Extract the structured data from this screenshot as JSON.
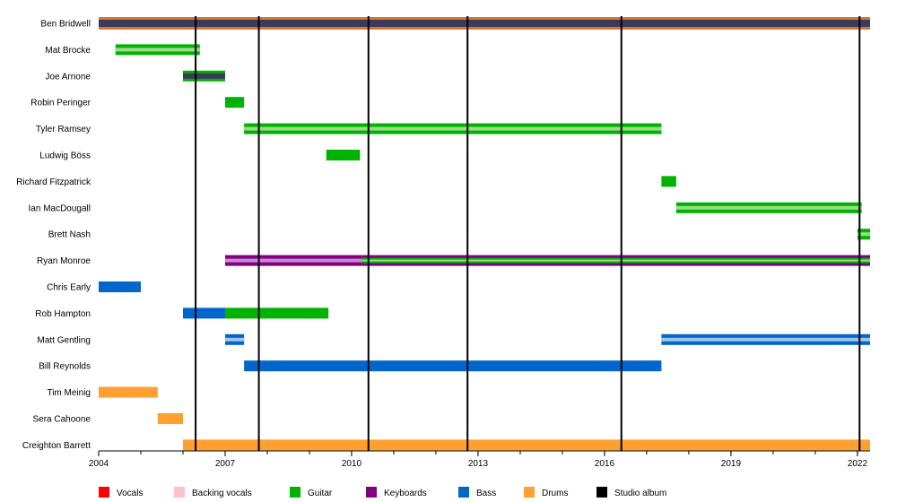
{
  "chart_data": {
    "type": "timeline",
    "title": "",
    "xlabel": "",
    "ylabel": "",
    "xlim": [
      2004.0,
      2022.3
    ],
    "x_ticks": [
      "2004",
      "2007",
      "2010",
      "2013",
      "2016",
      "2019",
      "2022"
    ],
    "grid": false,
    "legend_position": "bottom",
    "colors": {
      "vocals": "#ff0000",
      "backing": "#ffc0cb",
      "guitar": "#00b300",
      "keyboards": "#800080",
      "bass": "#0066cc",
      "drums": "#ffa030",
      "album": "#000000",
      "ben_vocals": "#3a3a5a",
      "ben_outer": "#d9782a",
      "acoustic": "#99dd88"
    },
    "legend": [
      {
        "label": "Vocals",
        "color": "#ff0000"
      },
      {
        "label": "Backing vocals",
        "color": "#ffc0cb"
      },
      {
        "label": "Guitar",
        "color": "#00b300"
      },
      {
        "label": "Keyboards",
        "color": "#800080"
      },
      {
        "label": "Bass",
        "color": "#0066cc"
      },
      {
        "label": "Drums",
        "color": "#ffa030"
      },
      {
        "label": "Studio album",
        "color": "#000000"
      }
    ],
    "studio_albums": [
      2006.3,
      2007.8,
      2010.4,
      2012.75,
      2016.4,
      2022.05
    ],
    "members": [
      {
        "name": "Ben Bridwell",
        "spans": [
          {
            "start": 2004.0,
            "end": 2022.3,
            "style": "ben"
          }
        ]
      },
      {
        "name": "Mat Brocke",
        "spans": [
          {
            "start": 2004.4,
            "end": 2006.4,
            "style": "guitar_thin"
          }
        ]
      },
      {
        "name": "Joe Arnone",
        "spans": [
          {
            "start": 2006.0,
            "end": 2007.0,
            "style": "joe"
          }
        ]
      },
      {
        "name": "Robin Peringer",
        "spans": [
          {
            "start": 2007.0,
            "end": 2007.45,
            "style": "guitar"
          }
        ]
      },
      {
        "name": "Tyler Ramsey",
        "spans": [
          {
            "start": 2007.45,
            "end": 2017.35,
            "style": "guitar_thin"
          }
        ]
      },
      {
        "name": "Ludwig Böss",
        "spans": [
          {
            "start": 2009.4,
            "end": 2010.2,
            "style": "guitar"
          }
        ]
      },
      {
        "name": "Richard Fitzpatrick",
        "spans": [
          {
            "start": 2017.35,
            "end": 2017.7,
            "style": "guitar"
          }
        ]
      },
      {
        "name": "Ian MacDougall",
        "spans": [
          {
            "start": 2017.7,
            "end": 2022.1,
            "style": "guitar_thin"
          }
        ]
      },
      {
        "name": "Brett Nash",
        "spans": [
          {
            "start": 2022.0,
            "end": 2022.3,
            "style": "guitar_thin"
          }
        ]
      },
      {
        "name": "Ryan Monroe",
        "spans": [
          {
            "start": 2007.0,
            "end": 2010.25,
            "style": "keys"
          },
          {
            "start": 2010.25,
            "end": 2022.3,
            "style": "keys_guitar"
          }
        ]
      },
      {
        "name": "Chris Early",
        "spans": [
          {
            "start": 2004.0,
            "end": 2005.0,
            "style": "bass"
          }
        ]
      },
      {
        "name": "Rob Hampton",
        "spans": [
          {
            "start": 2006.0,
            "end": 2007.0,
            "style": "bass"
          },
          {
            "start": 2007.0,
            "end": 2009.45,
            "style": "guitar"
          }
        ]
      },
      {
        "name": "Matt Gentling",
        "spans": [
          {
            "start": 2007.0,
            "end": 2007.45,
            "style": "bass_thin"
          },
          {
            "start": 2017.35,
            "end": 2022.3,
            "style": "bass_thin"
          }
        ]
      },
      {
        "name": "Bill Reynolds",
        "spans": [
          {
            "start": 2007.45,
            "end": 2017.35,
            "style": "bass"
          }
        ]
      },
      {
        "name": "Tim Meinig",
        "spans": [
          {
            "start": 2004.0,
            "end": 2005.4,
            "style": "drums"
          }
        ]
      },
      {
        "name": "Sera Cahoone",
        "spans": [
          {
            "start": 2005.4,
            "end": 2006.0,
            "style": "drums"
          }
        ]
      },
      {
        "name": "Creighton Barrett",
        "spans": [
          {
            "start": 2006.0,
            "end": 2022.3,
            "style": "drums"
          }
        ]
      }
    ]
  }
}
